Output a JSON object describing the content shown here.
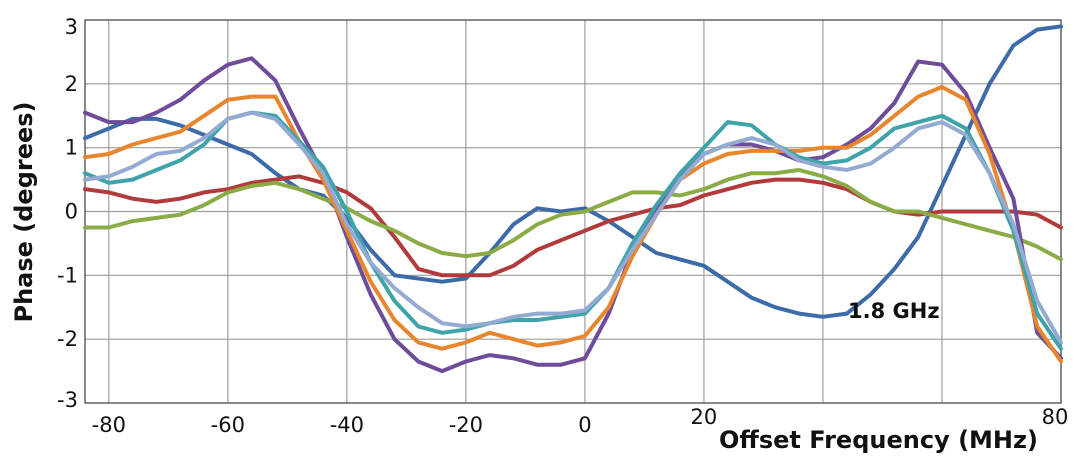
{
  "chart_data": {
    "type": "line",
    "xlabel": "Offset Frequency (MHz)",
    "ylabel": "Phase (degrees)",
    "xlim": [
      -84,
      80
    ],
    "ylim": [
      -3,
      3
    ],
    "xticks": [
      -80,
      -60,
      -40,
      -20,
      0,
      20,
      40,
      60,
      80
    ],
    "yticks": [
      3,
      2,
      1,
      0,
      -1,
      -2,
      -3
    ],
    "xtick_labels": [
      "-80",
      "-60",
      "-40",
      "-20",
      "0",
      "20",
      "",
      "",
      "80"
    ],
    "ytick_labels": [
      "3",
      "2",
      "1",
      "0",
      "-1",
      "-2",
      "-3"
    ],
    "grid": true,
    "annotations": [
      {
        "text": "1.8 GHz",
        "x": 44,
        "y": -1.5
      }
    ],
    "series": [
      {
        "color": "#3d6aa8",
        "points": [
          [
            -84,
            1.15
          ],
          [
            -80,
            1.3
          ],
          [
            -76,
            1.45
          ],
          [
            -72,
            1.45
          ],
          [
            -68,
            1.35
          ],
          [
            -64,
            1.2
          ],
          [
            -60,
            1.05
          ],
          [
            -56,
            0.9
          ],
          [
            -52,
            0.6
          ],
          [
            -48,
            0.35
          ],
          [
            -44,
            0.25
          ],
          [
            -40,
            -0.1
          ],
          [
            -36,
            -0.6
          ],
          [
            -32,
            -1.0
          ],
          [
            -28,
            -1.05
          ],
          [
            -24,
            -1.1
          ],
          [
            -20,
            -1.05
          ],
          [
            -16,
            -0.65
          ],
          [
            -12,
            -0.2
          ],
          [
            -8,
            0.05
          ],
          [
            -4,
            0.0
          ],
          [
            0,
            0.05
          ],
          [
            4,
            -0.15
          ],
          [
            8,
            -0.4
          ],
          [
            12,
            -0.65
          ],
          [
            16,
            -0.75
          ],
          [
            20,
            -0.85
          ],
          [
            24,
            -1.1
          ],
          [
            28,
            -1.35
          ],
          [
            32,
            -1.5
          ],
          [
            36,
            -1.6
          ],
          [
            40,
            -1.65
          ],
          [
            44,
            -1.6
          ],
          [
            48,
            -1.3
          ],
          [
            52,
            -0.9
          ],
          [
            56,
            -0.4
          ],
          [
            60,
            0.4
          ],
          [
            64,
            1.2
          ],
          [
            68,
            2.0
          ],
          [
            72,
            2.6
          ],
          [
            76,
            2.85
          ],
          [
            80,
            2.9
          ]
        ]
      },
      {
        "color": "#b23a3a",
        "points": [
          [
            -84,
            0.35
          ],
          [
            -80,
            0.3
          ],
          [
            -76,
            0.2
          ],
          [
            -72,
            0.15
          ],
          [
            -68,
            0.2
          ],
          [
            -64,
            0.3
          ],
          [
            -60,
            0.35
          ],
          [
            -56,
            0.45
          ],
          [
            -52,
            0.5
          ],
          [
            -48,
            0.55
          ],
          [
            -44,
            0.45
          ],
          [
            -40,
            0.3
          ],
          [
            -36,
            0.05
          ],
          [
            -32,
            -0.4
          ],
          [
            -28,
            -0.9
          ],
          [
            -24,
            -1.0
          ],
          [
            -20,
            -1.0
          ],
          [
            -16,
            -1.0
          ],
          [
            -12,
            -0.85
          ],
          [
            -8,
            -0.6
          ],
          [
            -4,
            -0.45
          ],
          [
            0,
            -0.3
          ],
          [
            4,
            -0.15
          ],
          [
            8,
            -0.05
          ],
          [
            12,
            0.05
          ],
          [
            16,
            0.1
          ],
          [
            20,
            0.25
          ],
          [
            24,
            0.35
          ],
          [
            28,
            0.45
          ],
          [
            32,
            0.5
          ],
          [
            36,
            0.5
          ],
          [
            40,
            0.45
          ],
          [
            44,
            0.35
          ],
          [
            48,
            0.15
          ],
          [
            52,
            0.0
          ],
          [
            56,
            -0.05
          ],
          [
            60,
            0.0
          ],
          [
            64,
            0.0
          ],
          [
            68,
            0.0
          ],
          [
            72,
            0.0
          ],
          [
            76,
            -0.05
          ],
          [
            80,
            -0.25
          ]
        ]
      },
      {
        "color": "#8aab46",
        "points": [
          [
            -84,
            -0.25
          ],
          [
            -80,
            -0.25
          ],
          [
            -76,
            -0.15
          ],
          [
            -72,
            -0.1
          ],
          [
            -68,
            -0.05
          ],
          [
            -64,
            0.1
          ],
          [
            -60,
            0.3
          ],
          [
            -56,
            0.4
          ],
          [
            -52,
            0.45
          ],
          [
            -48,
            0.35
          ],
          [
            -44,
            0.2
          ],
          [
            -40,
            0.05
          ],
          [
            -36,
            -0.15
          ],
          [
            -32,
            -0.3
          ],
          [
            -28,
            -0.5
          ],
          [
            -24,
            -0.65
          ],
          [
            -20,
            -0.7
          ],
          [
            -16,
            -0.65
          ],
          [
            -12,
            -0.45
          ],
          [
            -8,
            -0.2
          ],
          [
            -4,
            -0.05
          ],
          [
            0,
            0.0
          ],
          [
            4,
            0.15
          ],
          [
            8,
            0.3
          ],
          [
            12,
            0.3
          ],
          [
            16,
            0.25
          ],
          [
            20,
            0.35
          ],
          [
            24,
            0.5
          ],
          [
            28,
            0.6
          ],
          [
            32,
            0.6
          ],
          [
            36,
            0.65
          ],
          [
            40,
            0.55
          ],
          [
            44,
            0.4
          ],
          [
            48,
            0.15
          ],
          [
            52,
            0.0
          ],
          [
            56,
            0.0
          ],
          [
            60,
            -0.1
          ],
          [
            64,
            -0.2
          ],
          [
            68,
            -0.3
          ],
          [
            72,
            -0.4
          ],
          [
            76,
            -0.55
          ],
          [
            80,
            -0.75
          ]
        ]
      },
      {
        "color": "#6e4c99",
        "points": [
          [
            -84,
            1.55
          ],
          [
            -80,
            1.4
          ],
          [
            -76,
            1.4
          ],
          [
            -72,
            1.55
          ],
          [
            -68,
            1.75
          ],
          [
            -64,
            2.05
          ],
          [
            -60,
            2.3
          ],
          [
            -56,
            2.4
          ],
          [
            -52,
            2.05
          ],
          [
            -48,
            1.3
          ],
          [
            -44,
            0.6
          ],
          [
            -40,
            -0.4
          ],
          [
            -36,
            -1.3
          ],
          [
            -32,
            -2.0
          ],
          [
            -28,
            -2.35
          ],
          [
            -24,
            -2.5
          ],
          [
            -20,
            -2.35
          ],
          [
            -16,
            -2.25
          ],
          [
            -12,
            -2.3
          ],
          [
            -8,
            -2.4
          ],
          [
            -4,
            -2.4
          ],
          [
            0,
            -2.3
          ],
          [
            4,
            -1.6
          ],
          [
            8,
            -0.6
          ],
          [
            12,
            0.05
          ],
          [
            16,
            0.55
          ],
          [
            20,
            0.9
          ],
          [
            24,
            1.05
          ],
          [
            28,
            1.05
          ],
          [
            32,
            0.95
          ],
          [
            36,
            0.8
          ],
          [
            40,
            0.85
          ],
          [
            44,
            1.05
          ],
          [
            48,
            1.3
          ],
          [
            52,
            1.7
          ],
          [
            56,
            2.35
          ],
          [
            60,
            2.3
          ],
          [
            64,
            1.85
          ],
          [
            68,
            1.0
          ],
          [
            72,
            0.2
          ],
          [
            76,
            -1.9
          ],
          [
            80,
            -2.3
          ]
        ]
      },
      {
        "color": "#e8862e",
        "points": [
          [
            -84,
            0.85
          ],
          [
            -80,
            0.9
          ],
          [
            -76,
            1.05
          ],
          [
            -72,
            1.15
          ],
          [
            -68,
            1.25
          ],
          [
            -64,
            1.5
          ],
          [
            -60,
            1.75
          ],
          [
            -56,
            1.8
          ],
          [
            -52,
            1.8
          ],
          [
            -48,
            1.1
          ],
          [
            -44,
            0.5
          ],
          [
            -40,
            -0.3
          ],
          [
            -36,
            -1.1
          ],
          [
            -32,
            -1.7
          ],
          [
            -28,
            -2.05
          ],
          [
            -24,
            -2.15
          ],
          [
            -20,
            -2.05
          ],
          [
            -16,
            -1.9
          ],
          [
            -12,
            -2.0
          ],
          [
            -8,
            -2.1
          ],
          [
            -4,
            -2.05
          ],
          [
            0,
            -1.95
          ],
          [
            4,
            -1.5
          ],
          [
            8,
            -0.7
          ],
          [
            12,
            -0.05
          ],
          [
            16,
            0.5
          ],
          [
            20,
            0.75
          ],
          [
            24,
            0.9
          ],
          [
            28,
            0.95
          ],
          [
            32,
            0.95
          ],
          [
            36,
            0.95
          ],
          [
            40,
            1.0
          ],
          [
            44,
            1.0
          ],
          [
            48,
            1.2
          ],
          [
            52,
            1.5
          ],
          [
            56,
            1.8
          ],
          [
            60,
            1.95
          ],
          [
            64,
            1.75
          ],
          [
            68,
            0.9
          ],
          [
            72,
            -0.3
          ],
          [
            76,
            -1.8
          ],
          [
            80,
            -2.35
          ]
        ]
      },
      {
        "color": "#3fa3aa",
        "points": [
          [
            -84,
            0.6
          ],
          [
            -80,
            0.45
          ],
          [
            -76,
            0.5
          ],
          [
            -72,
            0.65
          ],
          [
            -68,
            0.8
          ],
          [
            -64,
            1.05
          ],
          [
            -60,
            1.45
          ],
          [
            -56,
            1.55
          ],
          [
            -52,
            1.5
          ],
          [
            -48,
            1.1
          ],
          [
            -44,
            0.7
          ],
          [
            -40,
            0.0
          ],
          [
            -36,
            -0.8
          ],
          [
            -32,
            -1.4
          ],
          [
            -28,
            -1.8
          ],
          [
            -24,
            -1.9
          ],
          [
            -20,
            -1.85
          ],
          [
            -16,
            -1.75
          ],
          [
            -12,
            -1.7
          ],
          [
            -8,
            -1.7
          ],
          [
            -4,
            -1.65
          ],
          [
            0,
            -1.6
          ],
          [
            4,
            -1.2
          ],
          [
            8,
            -0.5
          ],
          [
            12,
            0.1
          ],
          [
            16,
            0.6
          ],
          [
            20,
            1.0
          ],
          [
            24,
            1.4
          ],
          [
            28,
            1.35
          ],
          [
            32,
            1.05
          ],
          [
            36,
            0.85
          ],
          [
            40,
            0.75
          ],
          [
            44,
            0.8
          ],
          [
            48,
            1.0
          ],
          [
            52,
            1.3
          ],
          [
            56,
            1.4
          ],
          [
            60,
            1.5
          ],
          [
            64,
            1.3
          ],
          [
            68,
            0.6
          ],
          [
            72,
            -0.3
          ],
          [
            76,
            -1.6
          ],
          [
            80,
            -2.15
          ]
        ]
      },
      {
        "color": "#93aad2",
        "points": [
          [
            -84,
            0.5
          ],
          [
            -80,
            0.55
          ],
          [
            -76,
            0.7
          ],
          [
            -72,
            0.9
          ],
          [
            -68,
            0.95
          ],
          [
            -64,
            1.15
          ],
          [
            -60,
            1.45
          ],
          [
            -56,
            1.55
          ],
          [
            -52,
            1.45
          ],
          [
            -48,
            1.05
          ],
          [
            -44,
            0.6
          ],
          [
            -40,
            -0.2
          ],
          [
            -36,
            -0.8
          ],
          [
            -32,
            -1.2
          ],
          [
            -28,
            -1.5
          ],
          [
            -24,
            -1.75
          ],
          [
            -20,
            -1.8
          ],
          [
            -16,
            -1.75
          ],
          [
            -12,
            -1.65
          ],
          [
            -8,
            -1.6
          ],
          [
            -4,
            -1.6
          ],
          [
            0,
            -1.55
          ],
          [
            4,
            -1.2
          ],
          [
            8,
            -0.6
          ],
          [
            12,
            -0.05
          ],
          [
            16,
            0.5
          ],
          [
            20,
            0.9
          ],
          [
            24,
            1.05
          ],
          [
            28,
            1.15
          ],
          [
            32,
            1.05
          ],
          [
            36,
            0.8
          ],
          [
            40,
            0.7
          ],
          [
            44,
            0.65
          ],
          [
            48,
            0.75
          ],
          [
            52,
            1.0
          ],
          [
            56,
            1.3
          ],
          [
            60,
            1.4
          ],
          [
            64,
            1.2
          ],
          [
            68,
            0.6
          ],
          [
            72,
            -0.2
          ],
          [
            76,
            -1.4
          ],
          [
            80,
            -2.05
          ]
        ]
      }
    ]
  }
}
